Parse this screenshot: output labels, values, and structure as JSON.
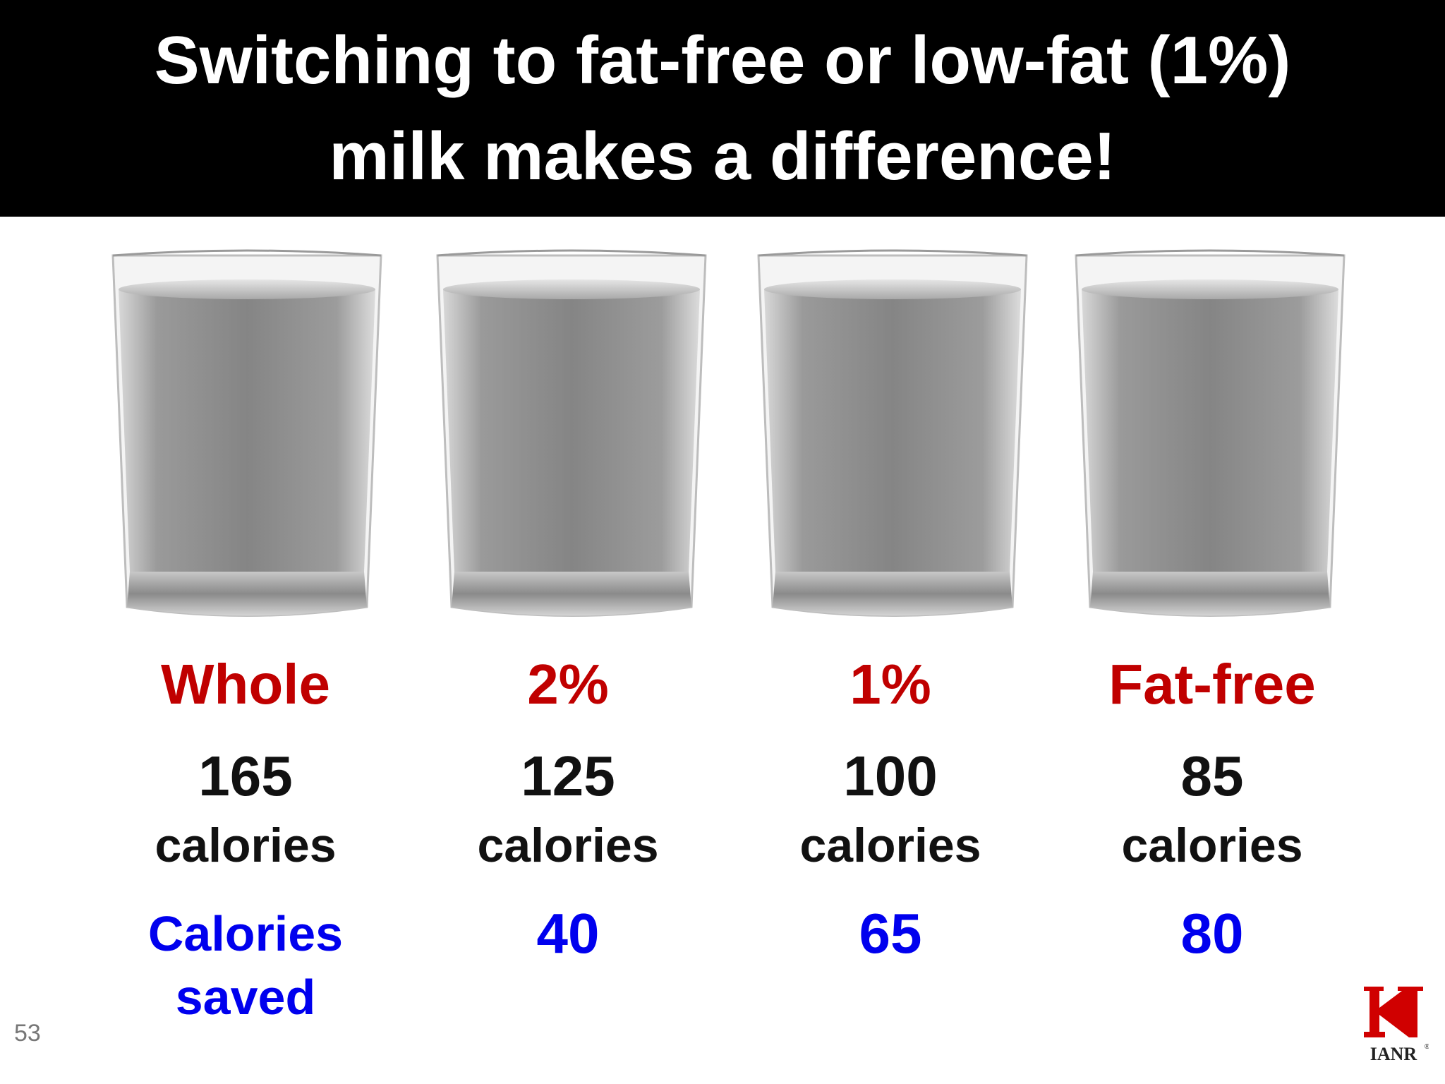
{
  "title": {
    "line1": "Switching to fat-free or low-fat (1%)",
    "line2": "milk makes a difference!"
  },
  "columns": [
    {
      "label": "Whole",
      "calories": "165",
      "unit": "calories",
      "saved": ""
    },
    {
      "label": "2%",
      "calories": "125",
      "unit": "calories",
      "saved": "40"
    },
    {
      "label": "1%",
      "calories": "100",
      "unit": "calories",
      "saved": "65"
    },
    {
      "label": "Fat-free",
      "calories": "85",
      "unit": "calories",
      "saved": "80"
    }
  ],
  "saved_label": {
    "line1": "Calories",
    "line2": "saved"
  },
  "page_number": "53",
  "logo": {
    "letter": "N",
    "text": "IANR",
    "color": "#d00000"
  },
  "colors": {
    "title_bg": "#000000",
    "title_text": "#ffffff",
    "fat_label": "#c00000",
    "calories": "#111111",
    "saved": "#0000ee"
  }
}
